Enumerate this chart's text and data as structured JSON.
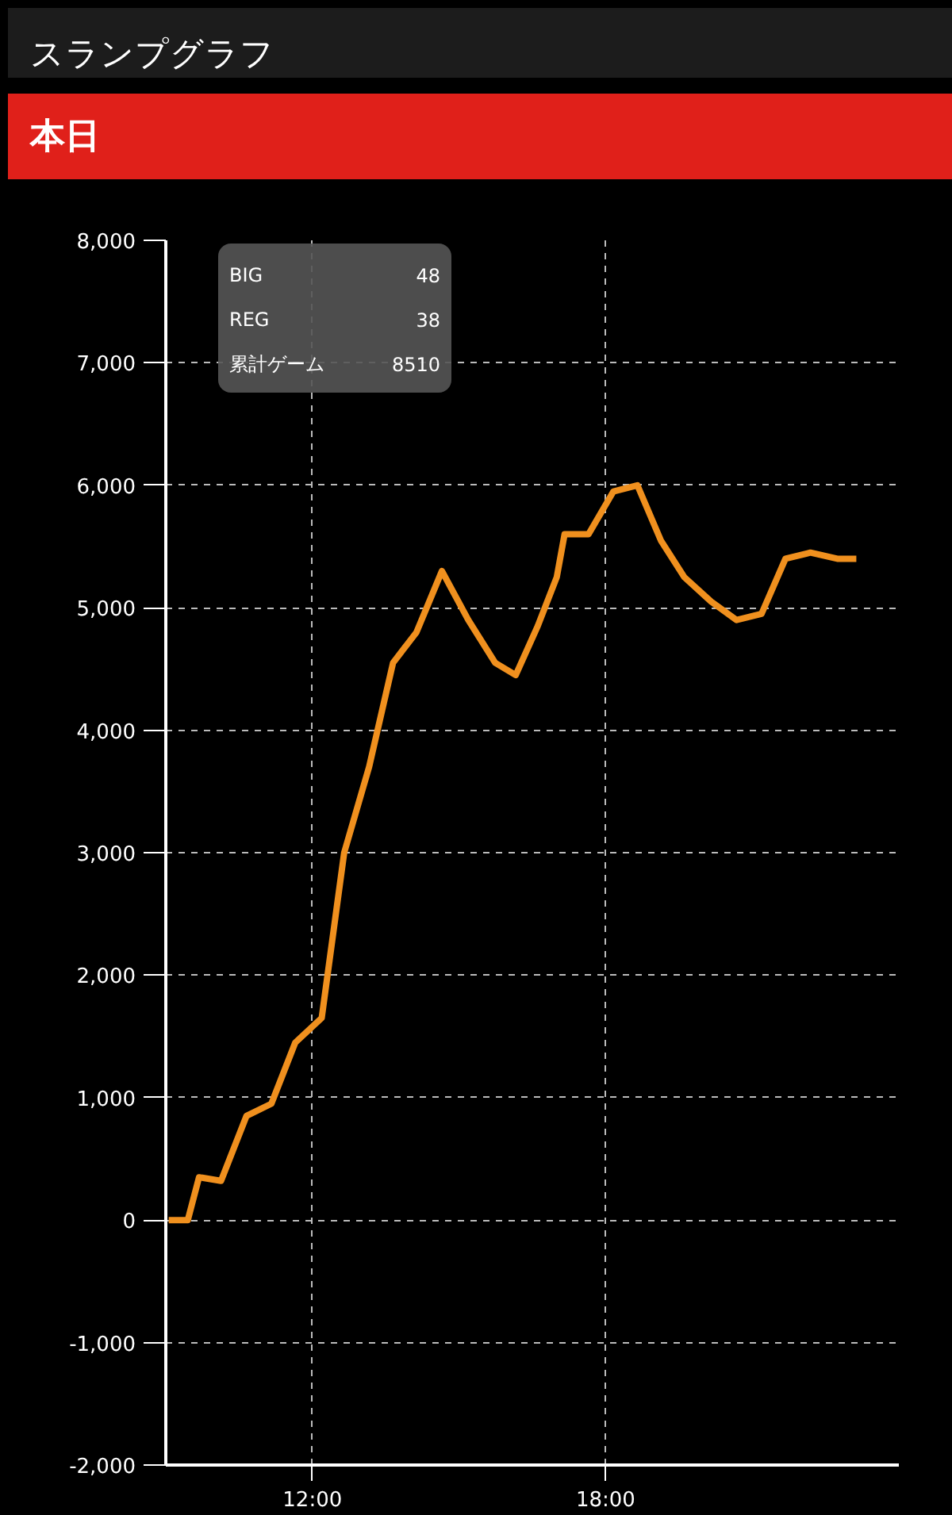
{
  "chart_data": {
    "type": "line",
    "title": "スランプグラフ",
    "subtitle": "本日",
    "annotations": [
      "BIG 48",
      "REG 38",
      "累計ゲーム 8510"
    ],
    "x": [
      9.06,
      9.45,
      9.68,
      10.13,
      10.65,
      11.16,
      11.65,
      12.19,
      12.65,
      13.16,
      13.65,
      14.13,
      14.65,
      15.19,
      15.74,
      16.16,
      16.61,
      17.0,
      17.16,
      17.65,
      18.16,
      18.65,
      19.13,
      19.61,
      20.16,
      20.68,
      21.19,
      21.68,
      22.19,
      22.74,
      23.13
    ],
    "series": [
      {
        "color": "#f0901e",
        "values": [
          0,
          0,
          350,
          320,
          850,
          950,
          1450,
          1650,
          3000,
          3700,
          4550,
          4800,
          5300,
          4900,
          4550,
          4450,
          4850,
          5250,
          5600,
          5600,
          5950,
          6000,
          5550,
          5250,
          5050,
          4900,
          4950,
          5400,
          5450,
          5400,
          5400
        ]
      }
    ],
    "xlim": [
      9,
      24
    ],
    "ylim": [
      -2000,
      8000
    ],
    "xticks": [
      {
        "value": 12,
        "label": "12:00"
      },
      {
        "value": 18,
        "label": "18:00"
      }
    ],
    "yticks": [
      {
        "value": -2000,
        "label": "-2,000"
      },
      {
        "value": -1000,
        "label": "-1,000"
      },
      {
        "value": 0,
        "label": "0"
      },
      {
        "value": 1000,
        "label": "1,000"
      },
      {
        "value": 2000,
        "label": "2,000"
      },
      {
        "value": 3000,
        "label": "3,000"
      },
      {
        "value": 4000,
        "label": "4,000"
      },
      {
        "value": 5000,
        "label": "5,000"
      },
      {
        "value": 6000,
        "label": "6,000"
      },
      {
        "value": 7000,
        "label": "7,000"
      },
      {
        "value": 8000,
        "label": "8,000"
      }
    ],
    "grid": true,
    "line_style": "solid",
    "marker": "none"
  }
}
